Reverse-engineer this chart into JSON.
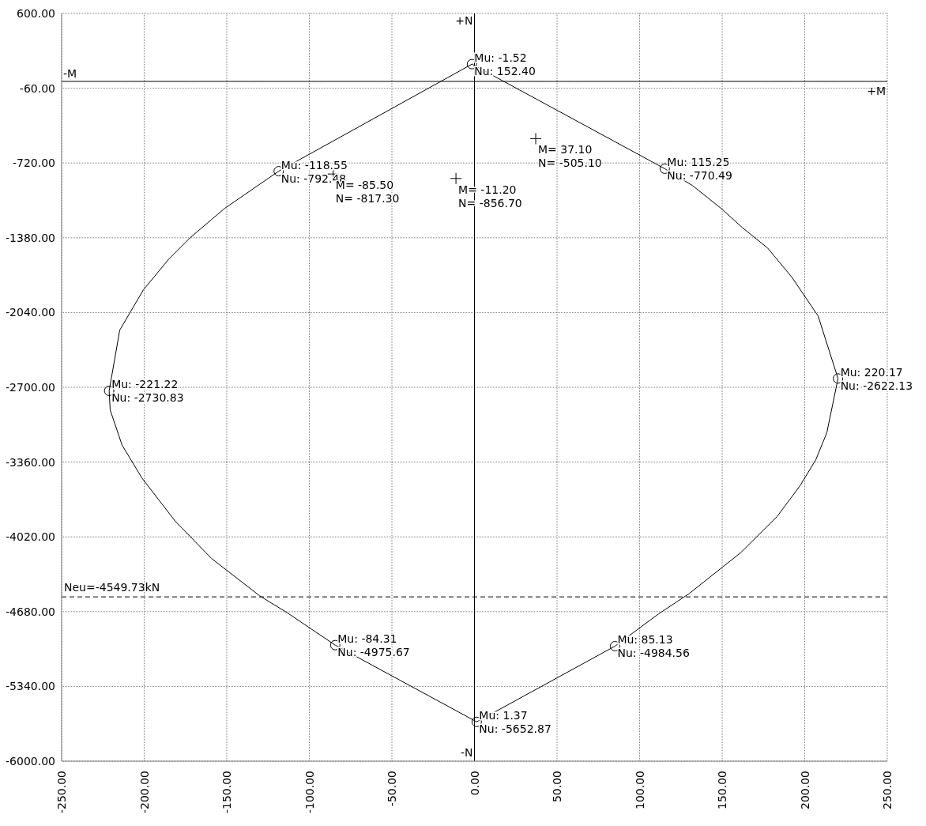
{
  "chart_data": {
    "type": "line",
    "xlim": [
      -250,
      250
    ],
    "xticks": [
      {
        "value": -250,
        "label": "-250.00"
      },
      {
        "value": -200,
        "label": "-200.00"
      },
      {
        "value": -150,
        "label": "-150.00"
      },
      {
        "value": -100,
        "label": "-100.00"
      },
      {
        "value": -50,
        "label": "-50.00"
      },
      {
        "value": 0,
        "label": "0.00"
      },
      {
        "value": 50,
        "label": "50.00"
      },
      {
        "value": 100,
        "label": "100.00"
      },
      {
        "value": 150,
        "label": "150.00"
      },
      {
        "value": 200,
        "label": "200.00"
      },
      {
        "value": 250,
        "label": "250.00"
      }
    ],
    "ylim": [
      -6000,
      600
    ],
    "yticks": [
      {
        "value": 600,
        "label": "600.00"
      },
      {
        "value": -60,
        "label": "-60.00"
      },
      {
        "value": -720,
        "label": "-720.00"
      },
      {
        "value": -1380,
        "label": "-1380.00"
      },
      {
        "value": -2040,
        "label": "-2040.00"
      },
      {
        "value": -2700,
        "label": "-2700.00"
      },
      {
        "value": -3360,
        "label": "-3360.00"
      },
      {
        "value": -4020,
        "label": "-4020.00"
      },
      {
        "value": -4680,
        "label": "-4680.00"
      },
      {
        "value": -5340,
        "label": "-5340.00"
      },
      {
        "value": -6000,
        "label": "-6000.00"
      }
    ],
    "grid": true,
    "series": [
      {
        "color": "#000000",
        "line_style": "solid",
        "x": [
          -221.22,
          -214.8,
          -200.5,
          -185.2,
          -172.2,
          -151.2,
          -118.55,
          -1.52
        ],
        "values": [
          -2730.83,
          -2195,
          -1840,
          -1570,
          -1380,
          -1120,
          -792.48,
          152.4
        ]
      },
      {
        "color": "#000000",
        "line_style": "solid",
        "x": [
          -221.22,
          -220.6,
          -213.4,
          -201.4,
          -181.3,
          -159.3,
          -130.1,
          -113.4,
          -84.31,
          1.37
        ],
        "values": [
          -2730.83,
          -2900,
          -3210,
          -3500,
          -3880,
          -4210,
          -4540,
          -4690,
          -4975.67,
          -5652.87
        ]
      },
      {
        "color": "#000000",
        "line_style": "solid",
        "x": [
          1.37,
          85.13,
          111.5,
          130.1,
          161.2,
          183.3,
          197.1,
          206.7,
          213.4,
          220.17
        ],
        "values": [
          -5652.87,
          -4984.56,
          -4700,
          -4520,
          -4160,
          -3840,
          -3570,
          -3340,
          -3100,
          -2622.13
        ]
      },
      {
        "color": "#000000",
        "line_style": "solid",
        "x": [
          -1.52,
          115.25,
          132.1,
          149.3,
          162.2,
          177.5,
          192.3,
          208.1,
          220.17
        ],
        "values": [
          152.4,
          -770.49,
          -920,
          -1120,
          -1290,
          -1470,
          -1730,
          -2070,
          -2622.13
        ]
      },
      {
        "type": "scatter",
        "color": "#000000",
        "marker": "circle",
        "x": [
          -1.52,
          -118.55,
          -221.22,
          -84.31,
          1.37,
          85.13,
          220.17,
          115.25
        ],
        "values": [
          152.4,
          -792.48,
          -2730.83,
          -4975.67,
          -5652.87,
          -4984.56,
          -2622.13,
          -770.49
        ],
        "value_labels": [
          "Mu: -1.52\nNu: 152.40",
          "Mu: -118.55\nNu: -792.48",
          "Mu: -221.22\nNu: -2730.83",
          "Mu: -84.31\nNu: -4975.67",
          "Mu: 1.37\nNu: -5652.87",
          "Mu: 85.13\nNu: -4984.56",
          "Mu: 220.17\nNu: -2622.13",
          "Mu: 115.25\nNu: -770.49"
        ]
      },
      {
        "type": "scatter",
        "color": "#000000",
        "marker": "cross",
        "x": [
          37.1,
          -85.5,
          -11.2
        ],
        "values": [
          -505.1,
          -817.3,
          -856.7
        ],
        "value_labels": [
          "M= 37.10\nN= -505.10",
          "M= -85.50\nN= -817.30",
          "M= -11.20\nN= -856.70"
        ]
      }
    ],
    "ref_lines": [
      {
        "axis": "y",
        "value": 0,
        "color": "#000000",
        "line_style": "solid"
      },
      {
        "axis": "x",
        "value": 0,
        "color": "#000000",
        "line_style": "solid"
      },
      {
        "axis": "y",
        "value": -4549.73,
        "label": "Neu=-4549.73kN",
        "color": "#000000",
        "line_style": "dashed"
      }
    ],
    "annotations": [
      {
        "text": "-M",
        "x": -250,
        "y": 0
      },
      {
        "text": "+M",
        "x": 250,
        "y": 0
      },
      {
        "text": "+N",
        "x": 0,
        "y": 600
      },
      {
        "text": "-N",
        "x": 0,
        "y": -6000
      }
    ]
  }
}
